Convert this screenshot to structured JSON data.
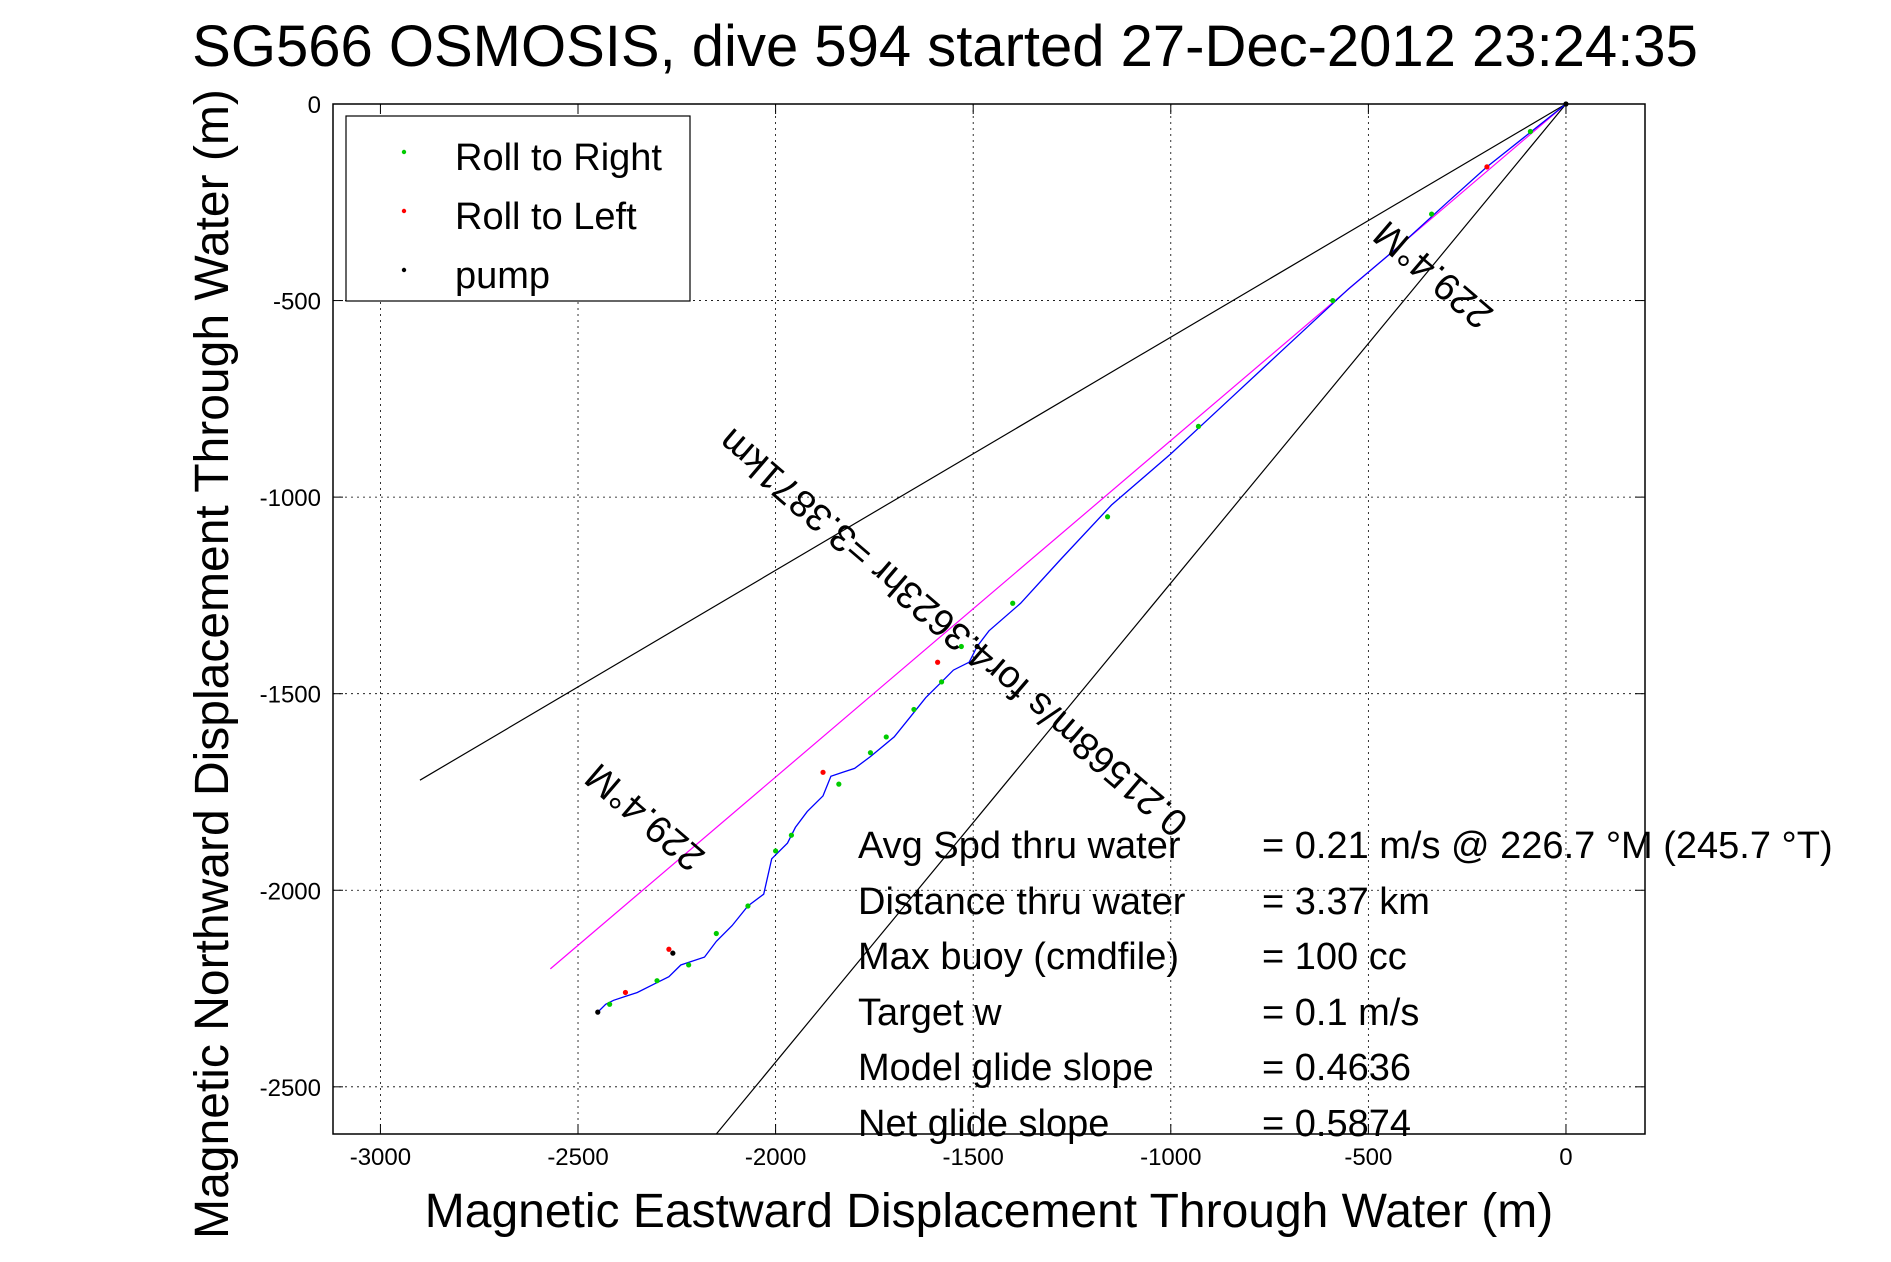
{
  "chart_data": {
    "type": "line",
    "title": "SG566 OSMOSIS, dive 594 started 27-Dec-2012 23:24:35",
    "xlabel": "Magnetic Eastward Displacement Through Water (m)",
    "ylabel": "Magnetic Northward Displacement Through Water (m)",
    "xlim": [
      -3120,
      200
    ],
    "ylim": [
      -2620,
      0
    ],
    "x_ticks": [
      -3000,
      -2500,
      -2000,
      -1500,
      -1000,
      -500,
      0
    ],
    "y_ticks": [
      0,
      -500,
      -1000,
      -1500,
      -2000,
      -2500
    ],
    "x_tick_labels": [
      "-3000",
      "-2500",
      "-2000",
      "-1500",
      "-1000",
      "-500",
      "0"
    ],
    "y_tick_labels": [
      "0",
      "-500",
      "-1000",
      "-1500",
      "-2000",
      "-2500"
    ],
    "grid": true,
    "legend_position": "top-left",
    "legend": [
      {
        "label": "Roll to Right",
        "color": "#00cc00"
      },
      {
        "label": "Roll to Left",
        "color": "#ff0000"
      },
      {
        "label": "pump",
        "color": "#000000"
      }
    ],
    "track": {
      "color": "#0000ff",
      "x": [
        0,
        -50,
        -100,
        -200,
        -300,
        -420,
        -550,
        -700,
        -850,
        -1000,
        -1150,
        -1280,
        -1380,
        -1460,
        -1490,
        -1510,
        -1550,
        -1580,
        -1620,
        -1660,
        -1700,
        -1760,
        -1800,
        -1830,
        -1860,
        -1880,
        -1920,
        -1950,
        -1970,
        -2010,
        -2030,
        -2070,
        -2110,
        -2150,
        -2180,
        -2240,
        -2270,
        -2310,
        -2350,
        -2380,
        -2410,
        -2430,
        -2450
      ],
      "y": [
        0,
        -40,
        -80,
        -160,
        -250,
        -360,
        -470,
        -610,
        -750,
        -890,
        -1020,
        -1160,
        -1270,
        -1340,
        -1380,
        -1420,
        -1440,
        -1470,
        -1510,
        -1560,
        -1610,
        -1660,
        -1690,
        -1700,
        -1710,
        -1760,
        -1800,
        -1840,
        -1880,
        -1920,
        -2010,
        -2040,
        -2090,
        -2130,
        -2170,
        -2190,
        -2220,
        -2240,
        -2260,
        -2270,
        -2280,
        -2290,
        -2310
      ]
    },
    "markers": {
      "roll_right": {
        "x": [
          -90,
          -340,
          -590,
          -930,
          -1160,
          -1400,
          -1530,
          -1580,
          -1650,
          -1720,
          -1760,
          -1840,
          -1960,
          -2000,
          -2070,
          -2150,
          -2220,
          -2300,
          -2420
        ],
        "y": [
          -70,
          -280,
          -500,
          -820,
          -1050,
          -1270,
          -1380,
          -1470,
          -1540,
          -1610,
          -1650,
          -1730,
          -1860,
          -1900,
          -2040,
          -2110,
          -2190,
          -2230,
          -2290
        ]
      },
      "roll_left": {
        "x": [
          -200,
          -1590,
          -1880,
          -2270,
          -2380
        ],
        "y": [
          -160,
          -1420,
          -1700,
          -2150,
          -2260
        ]
      },
      "pump": {
        "x": [
          0,
          -1490,
          -2260,
          -2450
        ],
        "y": [
          0,
          -1380,
          -2160,
          -2310
        ]
      }
    },
    "reference_lines": [
      {
        "color": "#ff00ff",
        "x": [
          0,
          -2570
        ],
        "y": [
          0,
          -2200
        ]
      },
      {
        "color": "#000000",
        "x": [
          0,
          -2900
        ],
        "y": [
          0,
          -1720
        ]
      },
      {
        "color": "#000000",
        "x": [
          0,
          -2150
        ],
        "y": [
          0,
          -2620
        ]
      }
    ],
    "annotations": [
      {
        "text": "229.4°M",
        "x": -2310,
        "y": -1790,
        "rotate": 220.6
      },
      {
        "text": "229.4°M",
        "x": -315,
        "y": -410,
        "rotate": 220.6
      },
      {
        "text": "0.21568m/s for4.3623hr =3.3871km",
        "x": -1530,
        "y": -1320,
        "rotate": 220.6
      }
    ],
    "stats": [
      {
        "label": "Avg Spd thru water",
        "value": "=  0.21 m/s @ 226.7 °M (245.7 °T)"
      },
      {
        "label": "Distance thru water",
        "value": "=  3.37 km"
      },
      {
        "label": "Max buoy (cmdfile)",
        "value": "= 100 cc"
      },
      {
        "label": "Target w",
        "value": "= 0.1 m/s"
      },
      {
        "label": "Model glide slope",
        "value": "= 0.4636"
      },
      {
        "label": "Net glide slope",
        "value": "= 0.5874"
      }
    ]
  }
}
